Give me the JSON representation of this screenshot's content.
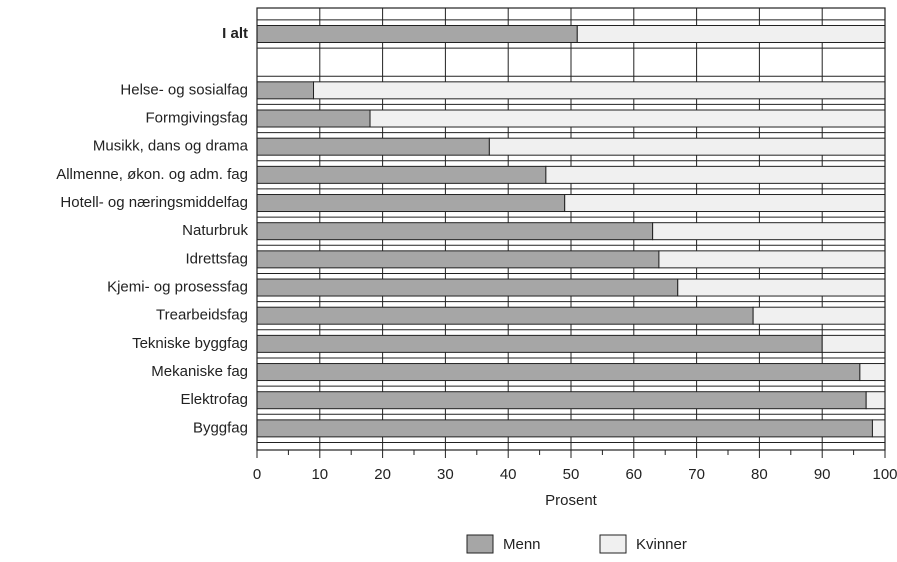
{
  "chart_data": {
    "type": "stacked-bar-horizontal",
    "categories": [
      "I alt",
      null,
      "Helse- og sosialfag",
      "Formgivingsfag",
      "Musikk, dans og drama",
      "Allmenne, økon. og adm. fag",
      "Hotell- og næringsmiddelfag",
      "Naturbruk",
      "Idrettsfag",
      "Kjemi- og prosessfag",
      "Trearbeidsfag",
      "Tekniske byggfag",
      "Mekaniske fag",
      "Elektrofag",
      "Byggfag"
    ],
    "series": [
      {
        "name": "Menn",
        "color": "#a6a6a6",
        "values": [
          51,
          null,
          9,
          18,
          37,
          46,
          49,
          63,
          64,
          67,
          79,
          90,
          96,
          97,
          98
        ]
      },
      {
        "name": "Kvinner",
        "color": "#f0f0f0",
        "values": [
          49,
          null,
          91,
          82,
          63,
          54,
          51,
          37,
          36,
          33,
          21,
          10,
          4,
          3,
          2
        ]
      }
    ],
    "x_label": "Prosent",
    "xlim": [
      0,
      100
    ],
    "xticks": [
      0,
      10,
      20,
      30,
      40,
      50,
      60,
      70,
      80,
      90,
      100
    ],
    "grid": true
  }
}
